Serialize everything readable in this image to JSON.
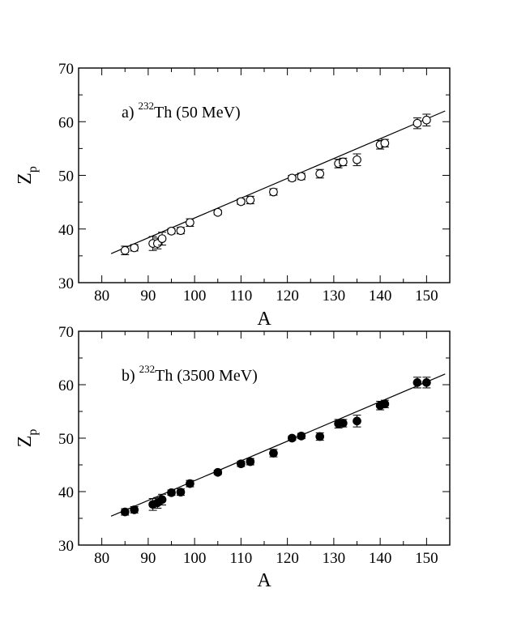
{
  "chart_data": [
    {
      "type": "scatter",
      "panel": "a",
      "annotation": {
        "prefix": "a) ",
        "superscript": "232",
        "text": "Th (50 MeV)"
      },
      "xlabel": "A",
      "ylabel": {
        "main": "Z",
        "subscript": "p"
      },
      "xlim": [
        75,
        155
      ],
      "ylim": [
        30,
        70
      ],
      "xticks": [
        80,
        90,
        100,
        110,
        120,
        130,
        140,
        150
      ],
      "yticks": [
        30,
        40,
        50,
        60,
        70
      ],
      "marker": "open-circle",
      "series": [
        {
          "name": "data",
          "points": [
            {
              "x": 85,
              "y": 36.0,
              "err": 0.8
            },
            {
              "x": 87,
              "y": 36.5,
              "err": 0.6
            },
            {
              "x": 91,
              "y": 37.3,
              "err": 1.3
            },
            {
              "x": 92,
              "y": 37.3,
              "err": 1.0
            },
            {
              "x": 93,
              "y": 38.2,
              "err": 1.2
            },
            {
              "x": 95,
              "y": 39.6,
              "err": 0.5
            },
            {
              "x": 97,
              "y": 39.7,
              "err": 0.6
            },
            {
              "x": 99,
              "y": 41.2,
              "err": 0.7
            },
            {
              "x": 105,
              "y": 43.1,
              "err": 0.4
            },
            {
              "x": 110,
              "y": 45.1,
              "err": 0.5
            },
            {
              "x": 112,
              "y": 45.4,
              "err": 0.7
            },
            {
              "x": 117,
              "y": 46.9,
              "err": 0.6
            },
            {
              "x": 121,
              "y": 49.5,
              "err": 0.5
            },
            {
              "x": 123,
              "y": 49.8,
              "err": 0.6
            },
            {
              "x": 127,
              "y": 50.3,
              "err": 0.8
            },
            {
              "x": 131,
              "y": 52.2,
              "err": 0.8
            },
            {
              "x": 132,
              "y": 52.5,
              "err": 0.7
            },
            {
              "x": 135,
              "y": 52.9,
              "err": 1.1
            },
            {
              "x": 140,
              "y": 55.7,
              "err": 0.8
            },
            {
              "x": 141,
              "y": 56.0,
              "err": 0.7
            },
            {
              "x": 148,
              "y": 59.7,
              "err": 1.0
            },
            {
              "x": 150,
              "y": 60.3,
              "err": 1.1
            }
          ]
        }
      ],
      "fit_line": {
        "x": [
          82,
          154
        ],
        "y": [
          35.4,
          62.0
        ]
      }
    },
    {
      "type": "scatter",
      "panel": "b",
      "annotation": {
        "prefix": "b) ",
        "superscript": "232",
        "text": "Th (3500 MeV)"
      },
      "xlabel": "A",
      "ylabel": {
        "main": "Z",
        "subscript": "p"
      },
      "xlim": [
        75,
        155
      ],
      "ylim": [
        30,
        70
      ],
      "xticks": [
        80,
        90,
        100,
        110,
        120,
        130,
        140,
        150
      ],
      "yticks": [
        30,
        40,
        50,
        60,
        70
      ],
      "marker": "filled-circle",
      "series": [
        {
          "name": "data",
          "points": [
            {
              "x": 85,
              "y": 36.2,
              "err": 0.6
            },
            {
              "x": 87,
              "y": 36.6,
              "err": 0.6
            },
            {
              "x": 91,
              "y": 37.6,
              "err": 1.1
            },
            {
              "x": 92,
              "y": 37.9,
              "err": 1.0
            },
            {
              "x": 93,
              "y": 38.5,
              "err": 1.0
            },
            {
              "x": 95,
              "y": 39.8,
              "err": 0.5
            },
            {
              "x": 97,
              "y": 39.9,
              "err": 0.6
            },
            {
              "x": 99,
              "y": 41.5,
              "err": 0.6
            },
            {
              "x": 105,
              "y": 43.6,
              "err": 0.4
            },
            {
              "x": 110,
              "y": 45.2,
              "err": 0.5
            },
            {
              "x": 112,
              "y": 45.6,
              "err": 0.6
            },
            {
              "x": 117,
              "y": 47.2,
              "err": 0.7
            },
            {
              "x": 121,
              "y": 50.0,
              "err": 0.4
            },
            {
              "x": 123,
              "y": 50.4,
              "err": 0.5
            },
            {
              "x": 127,
              "y": 50.3,
              "err": 0.7
            },
            {
              "x": 131,
              "y": 52.7,
              "err": 0.8
            },
            {
              "x": 132,
              "y": 52.8,
              "err": 0.7
            },
            {
              "x": 135,
              "y": 53.2,
              "err": 1.1
            },
            {
              "x": 140,
              "y": 56.1,
              "err": 0.8
            },
            {
              "x": 141,
              "y": 56.4,
              "err": 0.7
            },
            {
              "x": 148,
              "y": 60.4,
              "err": 1.0
            },
            {
              "x": 150,
              "y": 60.4,
              "err": 1.0
            }
          ]
        }
      ],
      "fit_line": {
        "x": [
          82,
          154
        ],
        "y": [
          35.4,
          62.0
        ]
      }
    }
  ]
}
